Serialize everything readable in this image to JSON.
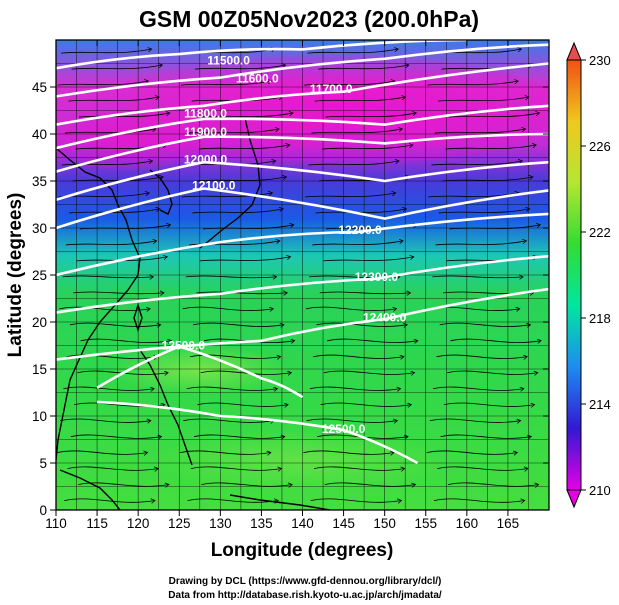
{
  "title": "GSM 00Z05Nov2023 (200.0hPa)",
  "x_axis": {
    "label": "Longitude (degrees)",
    "range": [
      110,
      170
    ],
    "ticks": [
      110,
      115,
      120,
      125,
      130,
      135,
      140,
      145,
      150,
      155,
      160,
      165
    ]
  },
  "y_axis": {
    "label": "Latitude (degrees)",
    "range": [
      0,
      50
    ],
    "ticks": [
      0,
      5,
      10,
      15,
      20,
      25,
      30,
      35,
      40,
      45
    ]
  },
  "colorbar": {
    "range": [
      210,
      230
    ],
    "tick_labels": [
      "230",
      "226",
      "222",
      "218",
      "214",
      "210"
    ],
    "stops": [
      "#e600e6",
      "#3219d2",
      "#1e8cf0",
      "#00e6a0",
      "#32dc32",
      "#b4e632",
      "#f0c81e",
      "#f05014"
    ]
  },
  "contours": [
    {
      "label": "11500.0",
      "lon": 131,
      "lat": 47.8
    },
    {
      "label": "11600.0",
      "lon": 134.5,
      "lat": 45.9
    },
    {
      "label": "11700.0",
      "lon": 143.5,
      "lat": 44.8
    },
    {
      "label": "11800.0",
      "lon": 128.2,
      "lat": 42.2
    },
    {
      "label": "11900.0",
      "lon": 128.2,
      "lat": 40.2
    },
    {
      "label": "12000.0",
      "lon": 128.2,
      "lat": 37.3
    },
    {
      "label": "12100.0",
      "lon": 129.2,
      "lat": 34.5
    },
    {
      "label": "12200.0",
      "lon": 147,
      "lat": 29.8
    },
    {
      "label": "12300.0",
      "lon": 149,
      "lat": 24.8
    },
    {
      "label": "12400.0",
      "lon": 150,
      "lat": 20.5
    },
    {
      "label": "12500.0",
      "lon": 125.5,
      "lat": 17.5
    },
    {
      "label": "12500.0",
      "lon": 145,
      "lat": 8.6
    }
  ],
  "credits": {
    "line1": "Drawing by DCL (https://www.gfd-dennou.org/library/dcl/)",
    "line2": "Data from http://database.rish.kyoto-u.ac.jp/arch/jmadata/"
  }
}
